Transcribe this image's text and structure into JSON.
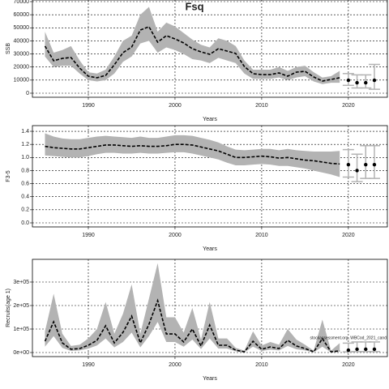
{
  "chart_data": [
    {
      "type": "line",
      "title": "Fsq",
      "ylabel": "SSB",
      "xlabel": "Years",
      "x": [
        1985,
        1986,
        1987,
        1988,
        1989,
        1990,
        1991,
        1992,
        1993,
        1994,
        1995,
        1996,
        1997,
        1998,
        1999,
        2000,
        2001,
        2002,
        2003,
        2004,
        2005,
        2006,
        2007,
        2008,
        2009,
        2010,
        2011,
        2012,
        2013,
        2014,
        2015,
        2016,
        2017,
        2018,
        2019
      ],
      "values": [
        36000,
        24800,
        26600,
        27300,
        19200,
        13000,
        11800,
        13600,
        21700,
        31000,
        35300,
        48300,
        50800,
        39000,
        44000,
        41500,
        38400,
        34000,
        31600,
        29700,
        34000,
        32200,
        30400,
        20400,
        14900,
        14200,
        14200,
        15500,
        13000,
        16100,
        16700,
        12400,
        9300,
        10500,
        11800
      ],
      "lower": [
        28000,
        20000,
        21000,
        21000,
        15000,
        10000,
        9000,
        10000,
        15000,
        24000,
        28000,
        38000,
        40000,
        31000,
        35000,
        33000,
        30000,
        26000,
        25000,
        23000,
        27000,
        25000,
        23000,
        15000,
        11000,
        11000,
        11000,
        12000,
        10000,
        12000,
        13000,
        9000,
        7000,
        8000,
        8000
      ],
      "upper": [
        47000,
        31000,
        33000,
        36000,
        25000,
        16000,
        15000,
        18000,
        28000,
        40000,
        44000,
        60000,
        66000,
        47000,
        54000,
        51000,
        46000,
        41000,
        37000,
        35000,
        42000,
        40000,
        36000,
        25000,
        18000,
        18000,
        18000,
        20000,
        17000,
        20000,
        21000,
        16000,
        12000,
        13000,
        17000
      ],
      "forecast_x": [
        2020,
        2021,
        2022,
        2023
      ],
      "forecast_values": [
        9900,
        8000,
        8000,
        9900
      ],
      "forecast_lower": [
        6000,
        4000,
        4000,
        3000
      ],
      "forecast_upper": [
        15000,
        14000,
        14000,
        22000
      ],
      "xlim": [
        1983.55,
        2024.5
      ],
      "ylim": [
        -3100,
        71240
      ],
      "xticks": [
        1990,
        2000,
        2010,
        2020
      ],
      "yticks": [
        0,
        10000,
        20000,
        30000,
        40000,
        50000,
        60000,
        70000
      ],
      "grid": true,
      "color": "#000000",
      "band_color": "#b3b3b3"
    },
    {
      "type": "line",
      "ylabel": "F3-5",
      "xlabel": "Years",
      "x": [
        1985,
        1986,
        1987,
        1988,
        1989,
        1990,
        1991,
        1992,
        1993,
        1994,
        1995,
        1996,
        1997,
        1998,
        1999,
        2000,
        2001,
        2002,
        2003,
        2004,
        2005,
        2006,
        2007,
        2008,
        2009,
        2010,
        2011,
        2012,
        2013,
        2014,
        2015,
        2016,
        2017,
        2018,
        2019
      ],
      "values": [
        1.17,
        1.15,
        1.14,
        1.13,
        1.13,
        1.15,
        1.17,
        1.19,
        1.19,
        1.18,
        1.17,
        1.18,
        1.17,
        1.17,
        1.18,
        1.2,
        1.2,
        1.19,
        1.16,
        1.13,
        1.1,
        1.05,
        1.0,
        1.0,
        1.01,
        1.02,
        1.01,
        0.99,
        1.0,
        0.98,
        0.96,
        0.95,
        0.93,
        0.91,
        0.9
      ],
      "lower": [
        1.03,
        1.02,
        1.01,
        1.0,
        1.0,
        1.02,
        1.05,
        1.07,
        1.07,
        1.06,
        1.06,
        1.07,
        1.06,
        1.06,
        1.07,
        1.08,
        1.08,
        1.06,
        1.03,
        1.0,
        0.97,
        0.92,
        0.88,
        0.88,
        0.89,
        0.9,
        0.89,
        0.87,
        0.87,
        0.85,
        0.83,
        0.8,
        0.77,
        0.74,
        0.7
      ],
      "upper": [
        1.37,
        1.32,
        1.29,
        1.28,
        1.28,
        1.3,
        1.32,
        1.33,
        1.32,
        1.31,
        1.3,
        1.32,
        1.3,
        1.3,
        1.32,
        1.34,
        1.34,
        1.33,
        1.3,
        1.27,
        1.23,
        1.17,
        1.12,
        1.11,
        1.12,
        1.13,
        1.13,
        1.11,
        1.13,
        1.11,
        1.1,
        1.09,
        1.09,
        1.09,
        1.1
      ],
      "forecast_x": [
        2020,
        2021,
        2022,
        2023
      ],
      "forecast_values": [
        0.89,
        0.8,
        0.89,
        0.89
      ],
      "forecast_lower": [
        0.7,
        0.63,
        0.68,
        0.68
      ],
      "forecast_upper": [
        1.12,
        1.05,
        1.18,
        1.18
      ],
      "xlim": [
        1983.55,
        2024.5
      ],
      "ylim": [
        -0.062,
        1.487
      ],
      "xticks": [
        1990,
        2000,
        2010,
        2020
      ],
      "yticks": [
        {
          "value": 0,
          "label": "0.0"
        },
        0.2,
        0.4,
        0.6,
        0.8,
        {
          "value": 1,
          "label": "1.0"
        },
        1.2,
        1.4
      ],
      "grid": true,
      "color": "#000000",
      "band_color": "#b3b3b3"
    },
    {
      "type": "line",
      "ylabel": "Recruits(age 1)",
      "xlabel": "Years",
      "annotation": "stockassessment.org, WBCod_2021_cand",
      "x": [
        1985,
        1986,
        1987,
        1988,
        1989,
        1990,
        1991,
        1992,
        1993,
        1994,
        1995,
        1996,
        1997,
        1998,
        1999,
        2000,
        2001,
        2002,
        2003,
        2004,
        2005,
        2006,
        2007,
        2008,
        2009,
        2010,
        2011,
        2012,
        2013,
        2014,
        2015,
        2016,
        2017,
        2018,
        2019
      ],
      "values": [
        48000,
        131000,
        41000,
        14000,
        17000,
        31000,
        52000,
        114000,
        41000,
        86000,
        155000,
        41000,
        121000,
        221000,
        79000,
        79000,
        45000,
        100000,
        28000,
        117000,
        31000,
        31000,
        10000,
        3000,
        48000,
        14000,
        24000,
        17000,
        52000,
        28000,
        17000,
        3000,
        59000,
        3000,
        7000
      ],
      "lower": [
        25000,
        70000,
        20000,
        7000,
        9000,
        17000,
        30000,
        60000,
        22000,
        45000,
        85000,
        22000,
        70000,
        130000,
        45000,
        45000,
        25000,
        55000,
        15000,
        60000,
        17000,
        17000,
        5000,
        1000,
        25000,
        7000,
        12000,
        9000,
        28000,
        14000,
        9000,
        1000,
        25000,
        1000,
        3000
      ],
      "upper": [
        90000,
        250000,
        80000,
        28000,
        33000,
        60000,
        100000,
        215000,
        80000,
        165000,
        290000,
        80000,
        230000,
        380000,
        150000,
        150000,
        85000,
        190000,
        55000,
        215000,
        60000,
        60000,
        20000,
        8000,
        90000,
        30000,
        45000,
        33000,
        100000,
        55000,
        33000,
        8000,
        140000,
        8000,
        40000
      ],
      "forecast_x": [
        2020,
        2021,
        2022,
        2023
      ],
      "forecast_values": [
        10000,
        14000,
        14000,
        14000
      ],
      "forecast_lower": [
        3000,
        4000,
        4000,
        4000
      ],
      "forecast_upper": [
        40000,
        45000,
        45000,
        45000
      ],
      "xlim": [
        1983.55,
        2024.5
      ],
      "ylim": [
        -17240,
        396550
      ],
      "xticks": [
        1990,
        2000,
        2010,
        2020
      ],
      "yticks": [
        {
          "value": 0,
          "label": "0e+00"
        },
        {
          "value": 100000,
          "label": "1e+05"
        },
        {
          "value": 200000,
          "label": "2e+05"
        },
        {
          "value": 300000,
          "label": "3e+05"
        }
      ],
      "grid": true,
      "color": "#000000",
      "band_color": "#b3b3b3"
    }
  ]
}
